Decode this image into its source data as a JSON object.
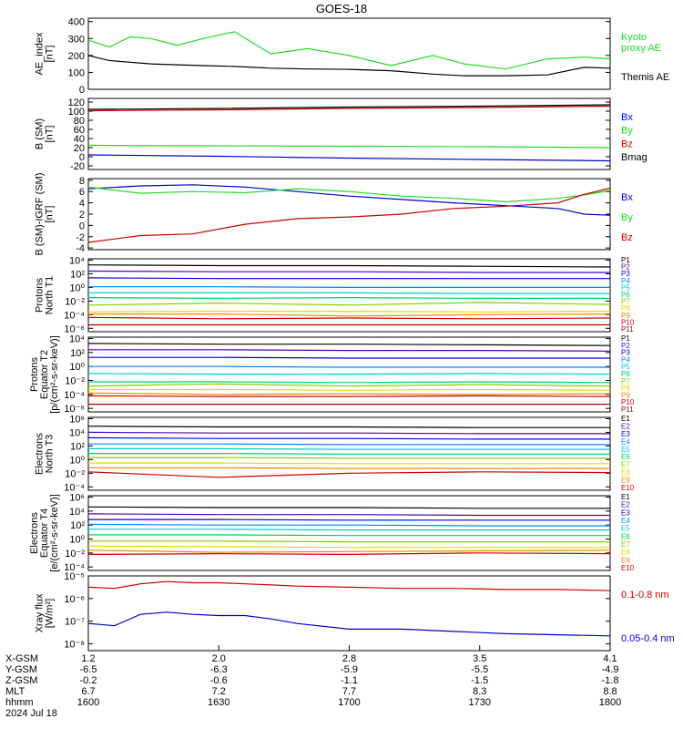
{
  "title": "GOES-18",
  "time_axis": {
    "date_label": "2024 Jul 18",
    "rows": [
      {
        "label": "X-GSM",
        "values": [
          "1.2",
          "2.0",
          "2.8",
          "3.5",
          "4.1"
        ]
      },
      {
        "label": "Y-GSM",
        "values": [
          "-6.5",
          "-6.3",
          "-5.9",
          "-5.5",
          "-4.9"
        ]
      },
      {
        "label": "Z-GSM",
        "values": [
          "-0.2",
          "-0.6",
          "-1.1",
          "-1.5",
          "-1.8"
        ]
      },
      {
        "label": "MLT",
        "values": [
          "6.7",
          "7.2",
          "7.7",
          "8.3",
          "8.8"
        ]
      },
      {
        "label": "hhmm",
        "values": [
          "1600",
          "1630",
          "1700",
          "1730",
          "1800"
        ]
      }
    ]
  },
  "colors": {
    "black": "#000000",
    "red": "#cc0000",
    "green": "#22dd22",
    "blue": "#0000cc",
    "ch": [
      "#000000",
      "#5500aa",
      "#0000dd",
      "#0088ff",
      "#00cccc",
      "#00cc66",
      "#88cc00",
      "#dddd00",
      "#ee8800",
      "#cc0000",
      "#aa0000"
    ]
  },
  "chart_data": [
    {
      "type": "line",
      "id": "ae",
      "ylabel": [
        "AE_index",
        "[nT]"
      ],
      "yticks": [
        "0",
        "100",
        "200",
        "300",
        "400"
      ],
      "ylim": [
        0,
        420
      ],
      "x": [
        0,
        0.04,
        0.08,
        0.12,
        0.17,
        0.22,
        0.28,
        0.35,
        0.42,
        0.5,
        0.58,
        0.66,
        0.72,
        0.8,
        0.88,
        0.95,
        1.0
      ],
      "series": [
        {
          "name": "Kyoto proxy AE",
          "color": "green",
          "label_lines": [
            "Kyoto",
            "proxy AE"
          ],
          "values": [
            290,
            250,
            310,
            300,
            260,
            300,
            340,
            210,
            240,
            200,
            140,
            200,
            150,
            120,
            180,
            190,
            180
          ]
        },
        {
          "name": "Themis AE",
          "color": "black",
          "label_lines": [
            "Themis AE"
          ],
          "values": [
            200,
            170,
            160,
            150,
            145,
            140,
            135,
            125,
            120,
            118,
            110,
            90,
            80,
            80,
            85,
            130,
            125
          ]
        }
      ]
    },
    {
      "type": "line",
      "id": "bsm",
      "ylabel": [
        "B (SM)",
        "[nT]"
      ],
      "yticks": [
        "-20",
        "0",
        "20",
        "40",
        "60",
        "80",
        "100",
        "120"
      ],
      "ylim": [
        -28,
        128
      ],
      "x": [
        0,
        0.25,
        0.5,
        0.75,
        1.0
      ],
      "series": [
        {
          "name": "Bx",
          "color": "blue",
          "values": [
            4,
            1,
            -3,
            -6,
            -9
          ]
        },
        {
          "name": "By",
          "color": "green",
          "values": [
            25,
            24,
            23,
            22,
            20
          ]
        },
        {
          "name": "Bz",
          "color": "red",
          "values": [
            101,
            103,
            106,
            108,
            111
          ]
        },
        {
          "name": "Bmag",
          "color": "black",
          "values": [
            104,
            106,
            109,
            111,
            114
          ]
        }
      ]
    },
    {
      "type": "line",
      "id": "bigrf",
      "ylabel": [
        "B (SM)-IGRF (SM)",
        "[nT]"
      ],
      "yticks": [
        "-4",
        "-2",
        "0",
        "2",
        "4",
        "6",
        "8"
      ],
      "ylim": [
        -4.3,
        8.3
      ],
      "x": [
        0,
        0.1,
        0.2,
        0.3,
        0.4,
        0.5,
        0.6,
        0.7,
        0.8,
        0.9,
        0.95,
        1.0
      ],
      "series": [
        {
          "name": "Bx",
          "color": "blue",
          "values": [
            6.5,
            7.0,
            7.2,
            6.8,
            6.0,
            5.2,
            4.6,
            4.0,
            3.5,
            3.0,
            2.0,
            1.8
          ]
        },
        {
          "name": "By",
          "color": "green",
          "values": [
            6.8,
            5.7,
            6.0,
            5.8,
            6.5,
            6.0,
            5.2,
            4.8,
            4.2,
            4.8,
            5.4,
            6.2
          ]
        },
        {
          "name": "Bz",
          "color": "red",
          "values": [
            -3.0,
            -1.8,
            -1.5,
            0.2,
            1.2,
            1.5,
            2.0,
            3.0,
            3.4,
            4.0,
            5.5,
            6.6
          ]
        }
      ]
    },
    {
      "type": "line",
      "id": "p1",
      "log": true,
      "ylabel": [
        "Protons",
        "North T1"
      ],
      "yticks": [
        "10⁻⁶",
        "10⁻⁴",
        "10⁻²",
        "10⁰",
        "10²",
        "10⁴"
      ],
      "ylim": [
        -6.5,
        4.2
      ],
      "x": [
        0,
        0.25,
        0.5,
        0.75,
        1.0
      ],
      "series": [
        {
          "name": "P1",
          "color": "ch.0",
          "values": [
            3.3,
            3.2,
            3.2,
            3.1,
            3.0
          ]
        },
        {
          "name": "P2",
          "color": "ch.1",
          "values": [
            2.4,
            2.3,
            2.3,
            2.2,
            2.2
          ]
        },
        {
          "name": "P3",
          "color": "ch.2",
          "values": [
            1.4,
            1.3,
            1.3,
            1.3,
            1.3
          ]
        },
        {
          "name": "P4",
          "color": "ch.3",
          "values": [
            0.1,
            0.1,
            0.0,
            0.0,
            0.0
          ]
        },
        {
          "name": "P5",
          "color": "ch.4",
          "values": [
            -0.8,
            -0.8,
            -0.8,
            -0.9,
            -0.9
          ]
        },
        {
          "name": "P6",
          "color": "ch.5",
          "values": [
            -1.5,
            -1.6,
            -1.5,
            -1.6,
            -1.6
          ]
        },
        {
          "name": "P7",
          "color": "ch.6",
          "values": [
            -2.6,
            -2.3,
            -2.6,
            -2.2,
            -2.5
          ]
        },
        {
          "name": "P8",
          "color": "ch.7",
          "values": [
            -3.6,
            -3.5,
            -3.5,
            -3.6,
            -3.5
          ]
        },
        {
          "name": "P9",
          "color": "ch.8",
          "values": [
            -3.9,
            -3.9,
            -4.2,
            -4.0,
            -3.9
          ]
        },
        {
          "name": "P10",
          "color": "ch.9",
          "values": [
            -4.4,
            -4.6,
            -4.5,
            -4.6,
            -4.5
          ]
        },
        {
          "name": "P11",
          "color": "ch.10",
          "values": [
            -5.5,
            -5.5,
            -5.5,
            -5.5,
            -5.5
          ]
        }
      ]
    },
    {
      "type": "line",
      "id": "p2",
      "log": true,
      "ylabel": [
        "Protons",
        "Equator T2",
        "[p/(cm²-s-sr-keV)]"
      ],
      "yticks": [
        "10⁻⁶",
        "10⁻⁴",
        "10⁻²",
        "10⁰",
        "10²",
        "10⁴"
      ],
      "ylim": [
        -6.5,
        4.2
      ],
      "x": [
        0,
        0.25,
        0.5,
        0.75,
        1.0
      ],
      "series": [
        {
          "name": "P1",
          "color": "ch.0",
          "values": [
            3.3,
            3.2,
            3.2,
            3.1,
            3.0
          ]
        },
        {
          "name": "P2",
          "color": "ch.1",
          "values": [
            2.4,
            2.4,
            2.3,
            2.3,
            2.2
          ]
        },
        {
          "name": "P3",
          "color": "ch.2",
          "values": [
            1.3,
            1.3,
            1.2,
            1.2,
            1.2
          ]
        },
        {
          "name": "P4",
          "color": "ch.3",
          "values": [
            0.0,
            0.0,
            -0.1,
            -0.1,
            -0.1
          ]
        },
        {
          "name": "P5",
          "color": "ch.4",
          "values": [
            -1.0,
            -1.1,
            -1.1,
            -1.0,
            -1.1
          ]
        },
        {
          "name": "P6",
          "color": "ch.5",
          "values": [
            -2.2,
            -2.2,
            -2.3,
            -2.2,
            -2.3
          ]
        },
        {
          "name": "P7",
          "color": "ch.6",
          "values": [
            -2.8,
            -2.5,
            -2.8,
            -2.6,
            -2.8
          ]
        },
        {
          "name": "P8",
          "color": "ch.7",
          "values": [
            -3.3,
            -3.3,
            -3.4,
            -3.3,
            -3.4
          ]
        },
        {
          "name": "P9",
          "color": "ch.8",
          "values": [
            -3.8,
            -4.0,
            -3.9,
            -4.0,
            -3.9
          ]
        },
        {
          "name": "P10",
          "color": "ch.9",
          "values": [
            -4.2,
            -4.3,
            -4.3,
            -4.2,
            -4.3
          ]
        },
        {
          "name": "P11",
          "color": "ch.10",
          "values": [
            -5.4,
            -5.4,
            -5.4,
            -5.4,
            -5.4
          ]
        }
      ]
    },
    {
      "type": "line",
      "id": "e1",
      "log": true,
      "ylabel": [
        "Electrons",
        "North T3"
      ],
      "yticks": [
        "10⁻⁴",
        "10⁻²",
        "10⁰",
        "10²",
        "10⁴",
        "10⁶"
      ],
      "ylim": [
        -4.5,
        6.2
      ],
      "x": [
        0,
        0.25,
        0.5,
        0.75,
        1.0
      ],
      "series": [
        {
          "name": "E1",
          "color": "ch.0",
          "values": [
            4.9,
            4.8,
            4.8,
            4.7,
            4.7
          ]
        },
        {
          "name": "E2",
          "color": "ch.1",
          "values": [
            4.0,
            3.9,
            3.9,
            3.8,
            3.8
          ]
        },
        {
          "name": "E3",
          "color": "ch.2",
          "values": [
            3.2,
            3.1,
            3.1,
            3.0,
            3.0
          ]
        },
        {
          "name": "E4",
          "color": "ch.3",
          "values": [
            2.3,
            2.3,
            2.2,
            2.2,
            2.2
          ]
        },
        {
          "name": "E5",
          "color": "ch.4",
          "values": [
            1.6,
            1.6,
            1.5,
            1.5,
            1.5
          ]
        },
        {
          "name": "E6",
          "color": "ch.5",
          "values": [
            0.9,
            0.9,
            0.8,
            0.8,
            0.8
          ]
        },
        {
          "name": "E7",
          "color": "ch.6",
          "values": [
            0.3,
            0.3,
            0.2,
            0.2,
            0.2
          ]
        },
        {
          "name": "E8",
          "color": "ch.7",
          "values": [
            -0.5,
            -0.5,
            -0.6,
            -0.6,
            -0.6
          ]
        },
        {
          "name": "E9",
          "color": "ch.8",
          "values": [
            -1.2,
            -1.2,
            -1.3,
            -1.3,
            -1.3
          ]
        },
        {
          "name": "E10",
          "color": "ch.9",
          "values": [
            -1.8,
            -2.6,
            -2.0,
            -1.8,
            -1.9
          ]
        }
      ]
    },
    {
      "type": "line",
      "id": "e2",
      "log": true,
      "ylabel": [
        "Electrons",
        "Equator T4",
        "[e/(cm²-s-sr-keV)]"
      ],
      "yticks": [
        "10⁻⁴",
        "10⁻²",
        "10⁰",
        "10²",
        "10⁴",
        "10⁶"
      ],
      "ylim": [
        -4.5,
        6.2
      ],
      "x": [
        0,
        0.25,
        0.5,
        0.75,
        1.0
      ],
      "series": [
        {
          "name": "E1",
          "color": "ch.0",
          "values": [
            4.6,
            4.5,
            4.5,
            4.4,
            4.4
          ]
        },
        {
          "name": "E2",
          "color": "ch.1",
          "values": [
            3.6,
            3.5,
            3.5,
            3.4,
            3.4
          ]
        },
        {
          "name": "E3",
          "color": "ch.2",
          "values": [
            2.8,
            2.8,
            2.7,
            2.7,
            2.7
          ]
        },
        {
          "name": "E4",
          "color": "ch.3",
          "values": [
            2.1,
            2.0,
            2.0,
            1.9,
            1.9
          ]
        },
        {
          "name": "E5",
          "color": "ch.4",
          "values": [
            1.4,
            1.4,
            1.3,
            1.3,
            1.3
          ]
        },
        {
          "name": "E6",
          "color": "ch.5",
          "values": [
            0.6,
            0.6,
            0.5,
            0.5,
            0.5
          ]
        },
        {
          "name": "E7",
          "color": "ch.6",
          "values": [
            -0.3,
            -0.3,
            -0.4,
            -0.4,
            -0.4
          ]
        },
        {
          "name": "E8",
          "color": "ch.7",
          "values": [
            -1.0,
            -1.1,
            -1.2,
            -1.2,
            -1.2
          ]
        },
        {
          "name": "E9",
          "color": "ch.8",
          "values": [
            -1.6,
            -1.9,
            -1.8,
            -1.7,
            -1.6
          ]
        },
        {
          "name": "E10",
          "color": "ch.9",
          "values": [
            -2.2,
            -2.1,
            -2.2,
            -2.0,
            -2.1
          ]
        }
      ]
    },
    {
      "type": "line",
      "id": "xray",
      "log": true,
      "ylabel": [
        "Xray flux",
        "[W/m²]"
      ],
      "yticks": [
        "10⁻⁸",
        "10⁻⁷",
        "10⁻⁶",
        "10⁻⁵"
      ],
      "ylim": [
        -8.3,
        -5.0
      ],
      "x": [
        0,
        0.05,
        0.1,
        0.15,
        0.2,
        0.25,
        0.3,
        0.35,
        0.4,
        0.5,
        0.6,
        0.7,
        0.8,
        0.9,
        1.0
      ],
      "series": [
        {
          "name": "0.1-0.8 nm",
          "color": "red",
          "values": [
            -5.5,
            -5.55,
            -5.35,
            -5.25,
            -5.3,
            -5.3,
            -5.35,
            -5.4,
            -5.45,
            -5.5,
            -5.55,
            -5.55,
            -5.6,
            -5.6,
            -5.65
          ]
        },
        {
          "name": "0.05-0.4 nm",
          "color": "blue",
          "values": [
            -7.1,
            -7.2,
            -6.7,
            -6.6,
            -6.7,
            -6.75,
            -6.75,
            -6.9,
            -7.1,
            -7.35,
            -7.35,
            -7.45,
            -7.55,
            -7.6,
            -7.65
          ]
        }
      ]
    }
  ]
}
